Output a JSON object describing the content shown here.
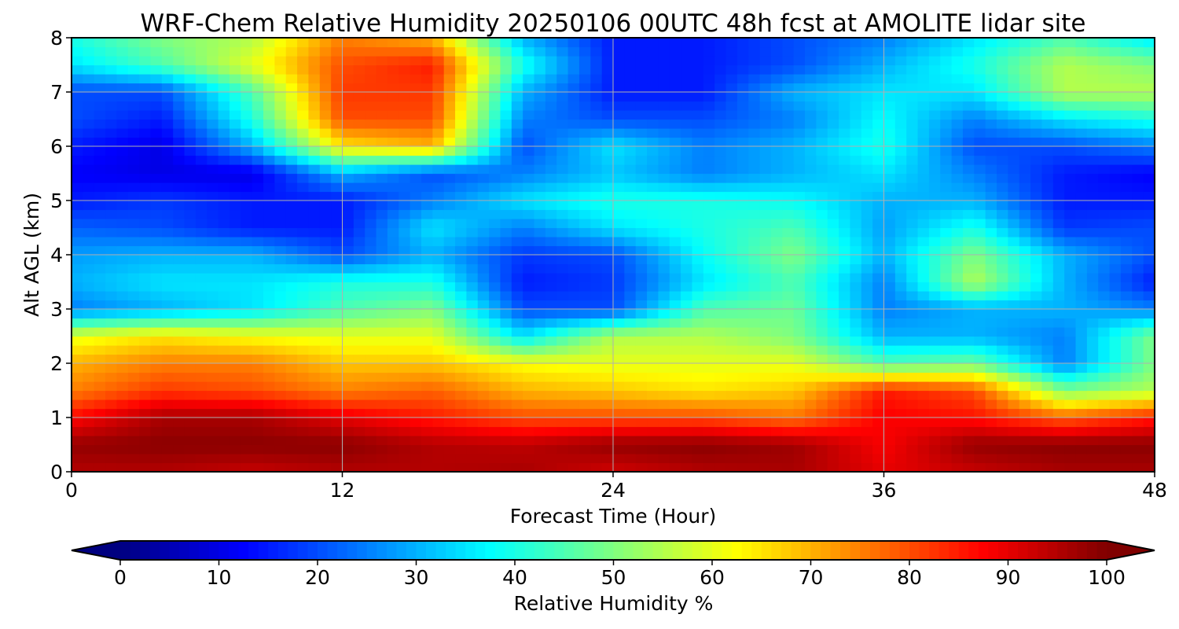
{
  "chart_data": {
    "type": "heatmap",
    "title": "WRF-Chem Relative Humidity 20250106 00UTC 48h fcst at AMOLITE lidar site",
    "xlabel": "Forecast Time (Hour)",
    "ylabel": "Alt AGL (km)",
    "xlim": [
      0,
      48
    ],
    "ylim": [
      0,
      8
    ],
    "xticks": [
      "0",
      "12",
      "24",
      "36",
      "48"
    ],
    "yticks": [
      "0",
      "1",
      "2",
      "3",
      "4",
      "5",
      "6",
      "7",
      "8"
    ],
    "grid": true,
    "colormap": "jet",
    "colorbar": {
      "label": "Relative Humidity %",
      "range": [
        0,
        100
      ],
      "ticks": [
        "0",
        "10",
        "20",
        "30",
        "40",
        "50",
        "60",
        "70",
        "80",
        "90",
        "100"
      ],
      "extend": "both",
      "orientation": "horizontal"
    },
    "x": [
      0,
      4,
      8,
      12,
      16,
      20,
      24,
      28,
      32,
      36,
      40,
      44,
      48
    ],
    "y": [
      0,
      0.5,
      1,
      1.5,
      2,
      2.5,
      3,
      3.5,
      4,
      4.5,
      5,
      5.5,
      6,
      6.5,
      7,
      7.5,
      8
    ],
    "z": [
      [
        95,
        95,
        93,
        95,
        95,
        96,
        92,
        95,
        96,
        90,
        93,
        96,
        96
      ],
      [
        98,
        99,
        99,
        99,
        95,
        94,
        98,
        99,
        97,
        88,
        98,
        99,
        99
      ],
      [
        87,
        96,
        96,
        90,
        85,
        80,
        80,
        80,
        76,
        88,
        86,
        78,
        85
      ],
      [
        75,
        82,
        80,
        75,
        78,
        70,
        68,
        65,
        68,
        85,
        80,
        50,
        55
      ],
      [
        70,
        75,
        75,
        68,
        68,
        62,
        60,
        60,
        60,
        45,
        48,
        25,
        50
      ],
      [
        60,
        65,
        62,
        60,
        60,
        35,
        55,
        55,
        50,
        30,
        30,
        25,
        50
      ],
      [
        25,
        30,
        35,
        45,
        50,
        20,
        20,
        45,
        48,
        25,
        30,
        30,
        25
      ],
      [
        30,
        35,
        35,
        40,
        40,
        15,
        18,
        35,
        45,
        25,
        55,
        30,
        15
      ],
      [
        28,
        30,
        30,
        20,
        30,
        18,
        20,
        38,
        50,
        30,
        50,
        30,
        20
      ],
      [
        22,
        20,
        15,
        15,
        35,
        25,
        35,
        40,
        45,
        28,
        40,
        18,
        20
      ],
      [
        15,
        18,
        15,
        15,
        25,
        35,
        40,
        40,
        38,
        30,
        30,
        15,
        15
      ],
      [
        12,
        10,
        10,
        30,
        20,
        25,
        32,
        25,
        30,
        35,
        25,
        15,
        12
      ],
      [
        15,
        10,
        30,
        65,
        70,
        20,
        35,
        25,
        30,
        40,
        20,
        20,
        25
      ],
      [
        20,
        15,
        40,
        80,
        80,
        25,
        20,
        20,
        25,
        38,
        25,
        35,
        40
      ],
      [
        20,
        20,
        45,
        82,
        82,
        30,
        15,
        15,
        30,
        35,
        35,
        55,
        55
      ],
      [
        35,
        45,
        60,
        80,
        85,
        40,
        15,
        15,
        20,
        30,
        40,
        55,
        50
      ],
      [
        40,
        50,
        55,
        75,
        70,
        30,
        15,
        15,
        20,
        25,
        35,
        45,
        35
      ]
    ]
  }
}
